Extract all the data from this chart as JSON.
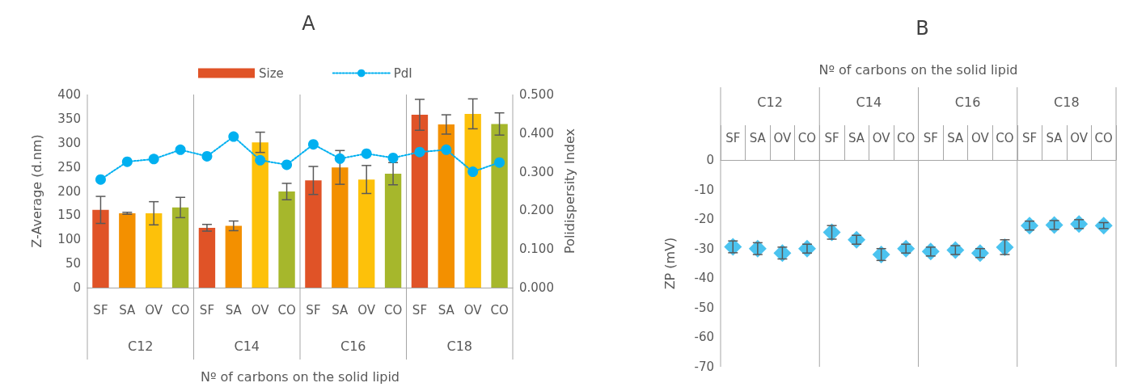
{
  "chart_data": [
    {
      "type": "bar",
      "title": "A",
      "xlabel": "Nº of carbons on the solid lipid",
      "ylabel": "Z-Average (d.nm)",
      "y2label": "Polidispersity Index",
      "categories": [
        "SF",
        "SA",
        "OV",
        "CO",
        "SF",
        "SA",
        "OV",
        "CO",
        "SF",
        "SA",
        "OV",
        "CO",
        "SF",
        "SA",
        "OV",
        "CO"
      ],
      "annotations": [
        "C12",
        "C14",
        "C16",
        "C18"
      ],
      "series": [
        {
          "name": "Size",
          "type": "bar",
          "color": "#e05327",
          "colors": [
            "#e05327",
            "#f39000",
            "#fdc10a",
            "#a6b72c",
            "#e05327",
            "#f39000",
            "#fdc10a",
            "#a6b72c",
            "#e05327",
            "#f39000",
            "#fdc10a",
            "#a6b72c",
            "#e05327",
            "#f39000",
            "#fdc10a",
            "#a6b72c"
          ],
          "values": [
            161,
            154,
            154,
            166,
            124,
            128,
            301,
            199,
            222,
            249,
            224,
            236,
            358,
            338,
            360,
            339
          ],
          "errors": [
            28,
            2,
            24,
            21,
            7,
            10,
            21,
            17,
            29,
            35,
            29,
            23,
            32,
            20,
            31,
            23
          ]
        },
        {
          "name": "PdI",
          "type": "line",
          "axis": "y2",
          "color": "#00b0f0",
          "marker": "circle",
          "line_style": "dotted",
          "values": [
            0.28,
            0.326,
            0.333,
            0.357,
            0.34,
            0.391,
            0.33,
            0.318,
            0.371,
            0.334,
            0.347,
            0.336,
            0.351,
            0.357,
            0.3,
            0.324
          ]
        }
      ],
      "ylim": [
        0,
        400
      ],
      "yticks": [
        0,
        50,
        100,
        150,
        200,
        250,
        300,
        350,
        400
      ],
      "y2lim": [
        0,
        0.5
      ],
      "y2ticks": [
        {
          "value": 0,
          "label": "0.000"
        },
        {
          "value": 0.1,
          "label": "0.100"
        },
        {
          "value": 0.2,
          "label": "0.200"
        },
        {
          "value": 0.3,
          "label": "0.300"
        },
        {
          "value": 0.4,
          "label": "0.400"
        },
        {
          "value": 0.5,
          "label": "0.500"
        }
      ],
      "legend": "top"
    },
    {
      "type": "scatter",
      "title": "B",
      "xlabel": "Nº of carbons on the solid lipid",
      "ylabel": "ZP (mV)",
      "categories": [
        "SF",
        "SA",
        "OV",
        "CO",
        "SF",
        "SA",
        "OV",
        "CO",
        "SF",
        "SA",
        "OV",
        "CO",
        "SF",
        "SA",
        "OV",
        "CO"
      ],
      "annotations": [
        "C12",
        "C14",
        "C16",
        "C18"
      ],
      "series": [
        {
          "color": "#41c0ee",
          "values": [
            -29.4,
            -30,
            -31.5,
            -30,
            -24.5,
            -27,
            -32,
            -30,
            -31,
            -30.5,
            -31.5,
            -29.5,
            -22.2,
            -22,
            -21.7,
            -22.2
          ],
          "errors": [
            2,
            2,
            2,
            1.5,
            2.3,
            1.5,
            2,
            1.5,
            1.5,
            1.5,
            1.5,
            2.5,
            1.5,
            1.5,
            1.5,
            1
          ]
        }
      ],
      "marker": "diamond",
      "ylim": [
        -70,
        0
      ],
      "yticks": [
        -70,
        -60,
        -50,
        -40,
        -30,
        -20,
        -10,
        0
      ]
    }
  ]
}
